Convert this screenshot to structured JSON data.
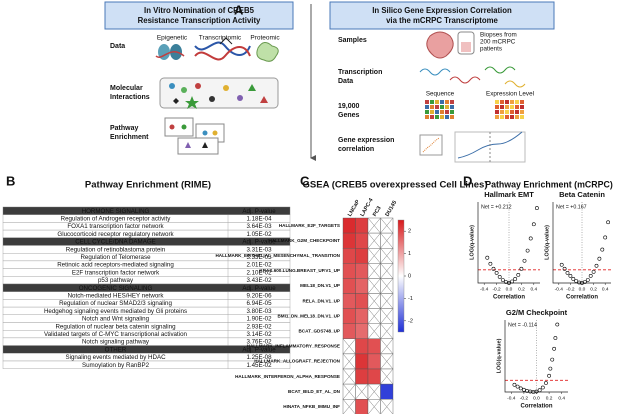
{
  "panel_a": {
    "label": "A",
    "left": {
      "title": [
        "In Vitro Nomination of CREB5",
        "Resistance Transcription Activity"
      ],
      "rows": [
        [
          "Data"
        ],
        [
          "Molecular",
          "Interactions"
        ],
        [
          "Pathway",
          "Enrichment"
        ]
      ],
      "data_types": [
        "Epigenetic",
        "Transcriptomic",
        "Proteomic"
      ]
    },
    "right": {
      "title": [
        "In Silico Gene Expression Correlation",
        "via the mCRPC Transcriptome"
      ],
      "rows": [
        [
          "Samples"
        ],
        [
          "Transcription",
          "Data"
        ],
        [
          "19,000",
          "Genes"
        ],
        [
          "Gene expression",
          "correlation"
        ]
      ],
      "samples_note": [
        "Biopses from",
        "200 mCRPC",
        "patients"
      ],
      "gene_labels": [
        "Sequence",
        "Expression Level"
      ]
    }
  },
  "panel_b": {
    "label": "B",
    "title": "Pathway Enrichment (RIME)",
    "column_header": "Adj. P-value",
    "groups": [
      {
        "name": "HORMONE SIGNALING",
        "rows": [
          [
            "Regulation of Androgen receptor activity",
            "1.18E-04"
          ],
          [
            "FOXA1 transcription factor network",
            "3.64E-03"
          ],
          [
            "Glucocorticoid receptor regulatory network",
            "1.05E-02"
          ]
        ]
      },
      {
        "name": "CELL CYCLE/DNA DAMAGE",
        "rows": [
          [
            "Regulation of retinoblastoma protein",
            "3.31E-03"
          ],
          [
            "Regulation of Telomerase",
            "3.33E-03"
          ],
          [
            "Retinoic acid receptors-mediated signaling",
            "2.01E-02"
          ],
          [
            "E2F transcription factor network",
            "2.10E-02"
          ],
          [
            "p53 pathway",
            "3.43E-02"
          ]
        ]
      },
      {
        "name": "ONCOGENIC SIGNALING",
        "rows": [
          [
            "Notch-mediated HES/HEY network",
            "9.20E-06"
          ],
          [
            "Regulation of nuclear SMAD2/3 signaling",
            "6.94E-05"
          ],
          [
            "Hedgehog signaling events mediated by Gli proteins",
            "3.80E-03"
          ],
          [
            "Notch and Wnt signaling",
            "1.90E-02"
          ],
          [
            "Regulation of nuclear beta catenin signaling",
            "2.93E-02"
          ],
          [
            "Validated targets of C-MYC transcriptional activation",
            "3.14E-02"
          ],
          [
            "Notch signaling pathway",
            "3.76E-02"
          ]
        ]
      },
      {
        "name": "OTHER",
        "rows": [
          [
            "Signaling events mediated by HDAC",
            "1.25E-08"
          ],
          [
            "Sumoylation by RanBP2",
            "1.45E-02"
          ]
        ]
      }
    ]
  },
  "panel_c": {
    "label": "C",
    "title": "GSEA (CREB5 overexpressed Cell Lines)",
    "heatmap": {
      "type": "heatmap",
      "columns": [
        "LNCaP",
        "LAPC-4",
        "PC3",
        "DU145"
      ],
      "rows": [
        "HALLMARK_E2F_TARGETS",
        "HALLMARK_G2M_CHECKPOINT",
        "HALLMARK_EPITHELIAL_MESENCHYMAL_TRANSITION",
        "KRAS.600.LUNG.BREAST_UP.V1_UP",
        "MEL18_DN.V1_UP",
        "RELA_DN.V1_UP",
        "BMI1_DN_MEL18_DN.V1_UP",
        "BCAT_GDS748_UP",
        "HALLMARK_INFLAMMATORY_RESPONSE",
        "HALLMARK_ALLOGRAFT_REJECTION",
        "HALLMARK_INTERFERON_ALPHA_RESPONSE",
        "BCAT_BILD_ET_AL_DN",
        "HINATA_NFKB_IMMU_INF"
      ],
      "values": [
        [
          2.3,
          2.1,
          null,
          null
        ],
        [
          2.2,
          2.0,
          null,
          null
        ],
        [
          2.0,
          2.1,
          null,
          null
        ],
        [
          1.9,
          1.8,
          null,
          null
        ],
        [
          1.9,
          1.7,
          null,
          null
        ],
        [
          1.8,
          1.9,
          null,
          null
        ],
        [
          1.9,
          1.7,
          null,
          null
        ],
        [
          1.8,
          1.6,
          null,
          null
        ],
        [
          null,
          2.0,
          1.9,
          null
        ],
        [
          null,
          2.2,
          1.8,
          null
        ],
        [
          null,
          2.1,
          2.0,
          null
        ],
        [
          null,
          null,
          null,
          -2.3
        ],
        [
          null,
          1.9,
          null,
          null
        ]
      ],
      "clim": [
        -2.5,
        2.5
      ],
      "colorbar_ticks": [
        2,
        1,
        0,
        -1,
        -2
      ],
      "colors": {
        "high": "#d7191c",
        "mid": "#ffffff",
        "low": "#1f2fd6"
      }
    }
  },
  "panel_d": {
    "label": "D",
    "title": "Pathway Enrichment (mCRPC)",
    "charts": [
      {
        "type": "scatter",
        "title": "Hallmark EMT",
        "annotation": "Net = +0.212",
        "xlabel": "Correlation",
        "ylabel": "LOG(q-value)",
        "xlim": [
          -0.5,
          0.5
        ],
        "xticks": [
          -0.4,
          -0.2,
          {
            "value": 0,
            "label": "0.0"
          },
          0.2,
          0.4
        ],
        "ylim": [
          0,
          8
        ],
        "threshold": 1.3,
        "color": "#000000",
        "x": [
          -0.35,
          -0.3,
          -0.25,
          -0.2,
          -0.15,
          -0.1,
          -0.05,
          0,
          0.05,
          0.1,
          0.15,
          0.2,
          0.25,
          0.3,
          0.35,
          0.4,
          0.45
        ],
        "y": [
          2.5,
          1.9,
          1.4,
          1.0,
          0.6,
          0.3,
          0.1,
          0,
          0.15,
          0.4,
          0.8,
          1.4,
          2.2,
          3.2,
          4.4,
          5.8,
          7.4
        ]
      },
      {
        "type": "scatter",
        "title": "Beta Catenin",
        "annotation": "Net = +0.167",
        "xlabel": "Correlation",
        "ylabel": "LOG(q-value)",
        "xlim": [
          -0.5,
          0.5
        ],
        "xticks": [
          -0.4,
          -0.2,
          {
            "value": 0,
            "label": "0.0"
          },
          0.2,
          0.4
        ],
        "ylim": [
          0,
          8
        ],
        "threshold": 1.3,
        "color": "#000000",
        "x": [
          -0.35,
          -0.3,
          -0.25,
          -0.2,
          -0.15,
          -0.1,
          -0.05,
          0,
          0.05,
          0.1,
          0.15,
          0.2,
          0.25,
          0.3,
          0.35,
          0.4,
          0.45
        ],
        "y": [
          1.8,
          1.4,
          1.0,
          0.7,
          0.4,
          0.2,
          0.05,
          0,
          0.1,
          0.3,
          0.7,
          1.1,
          1.7,
          2.4,
          3.3,
          4.5,
          6.0
        ]
      },
      {
        "type": "scatter",
        "title": "G2/M Checkpoint",
        "annotation": "Net = -0.114",
        "xlabel": "Correlation",
        "ylabel": "LOG(q-value)",
        "xlim": [
          -0.5,
          0.5
        ],
        "xticks": [
          -0.4,
          -0.2,
          {
            "value": 0,
            "label": "0.0"
          },
          0.2,
          0.4
        ],
        "ylim": [
          0,
          8
        ],
        "threshold": 1.3,
        "color": "#000000",
        "x": [
          -0.35,
          -0.3,
          -0.25,
          -0.2,
          -0.15,
          -0.1,
          -0.05,
          0,
          0.05,
          0.1,
          0.15,
          0.2,
          0.22,
          0.25,
          0.28,
          0.3,
          0.33
        ],
        "y": [
          0.8,
          0.6,
          0.4,
          0.25,
          0.12,
          0.05,
          0,
          0.05,
          0.2,
          0.5,
          1.0,
          1.8,
          2.6,
          3.6,
          4.8,
          6.0,
          7.5
        ]
      }
    ]
  }
}
